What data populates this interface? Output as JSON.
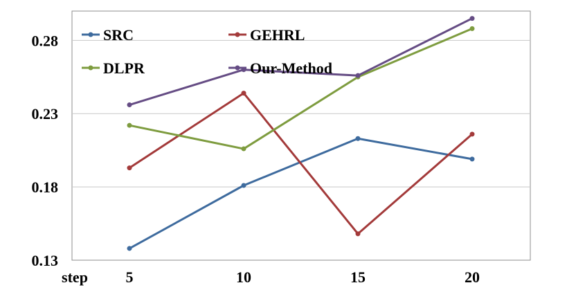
{
  "chart_data": {
    "type": "line",
    "x": [
      5,
      10,
      15,
      20
    ],
    "xlabel": "step",
    "ylim": [
      0.13,
      0.3
    ],
    "yticks": [
      "0.13",
      "0.18",
      "0.23",
      "0.28"
    ],
    "ytick_values": [
      0.13,
      0.18,
      0.23,
      0.28
    ],
    "grid": "horizontal",
    "legend_position": "top",
    "series": [
      {
        "name": "SRC",
        "color": "#3E6B9E",
        "values": [
          0.138,
          0.181,
          0.213,
          0.199
        ]
      },
      {
        "name": "GEHRL",
        "color": "#A33A3A",
        "values": [
          0.193,
          0.244,
          0.148,
          0.216
        ]
      },
      {
        "name": "DLPR",
        "color": "#7E9C3F",
        "values": [
          0.222,
          0.206,
          0.255,
          0.288
        ]
      },
      {
        "name": "Our-Method",
        "color": "#654C84",
        "values": [
          0.236,
          0.26,
          0.256,
          0.295
        ]
      }
    ]
  }
}
